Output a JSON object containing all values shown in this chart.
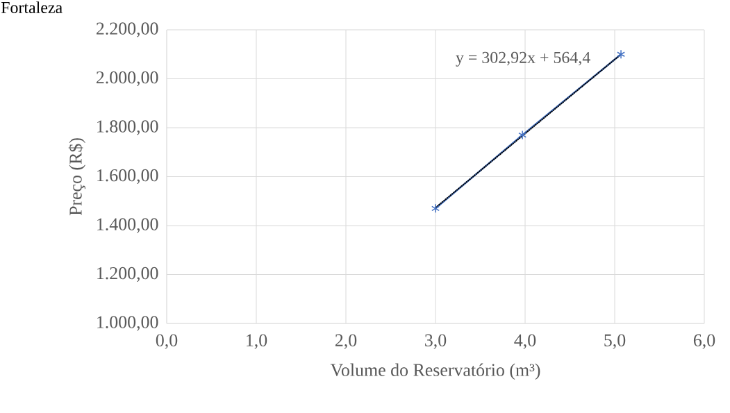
{
  "chart_data": {
    "type": "line",
    "title": "Fortaleza",
    "xlabel": "Volume do Reservatório (m³)",
    "ylabel": "Preço (R$)",
    "xlim": [
      0,
      6
    ],
    "ylim": [
      1000,
      2200
    ],
    "xticks": [
      {
        "value": 0,
        "label": "0,0"
      },
      {
        "value": 1,
        "label": "1,0"
      },
      {
        "value": 2,
        "label": "2,0"
      },
      {
        "value": 3,
        "label": "3,0"
      },
      {
        "value": 4,
        "label": "4,0"
      },
      {
        "value": 5,
        "label": "5,0"
      },
      {
        "value": 6,
        "label": "6,0"
      }
    ],
    "yticks": [
      {
        "value": 1000,
        "label": "1.000,00"
      },
      {
        "value": 1200,
        "label": "1.200,00"
      },
      {
        "value": 1400,
        "label": "1.400,00"
      },
      {
        "value": 1600,
        "label": "1.600,00"
      },
      {
        "value": 1800,
        "label": "1.800,00"
      },
      {
        "value": 2000,
        "label": "2.000,00"
      },
      {
        "value": 2200,
        "label": "2.200,00"
      }
    ],
    "grid": true,
    "series": [
      {
        "color": "#4472c4",
        "x": [
          3.0,
          3.97,
          5.07
        ],
        "values": [
          1470,
          1770,
          2100
        ],
        "marker": "cross",
        "line_style": "solid"
      },
      {
        "color": "#000000",
        "x": [
          3.0,
          5.07
        ],
        "values": [
          1473,
          2100
        ],
        "marker": "none",
        "line_style": "dotted"
      }
    ],
    "annotations": [
      "y = 302,92x + 564,4"
    ]
  }
}
